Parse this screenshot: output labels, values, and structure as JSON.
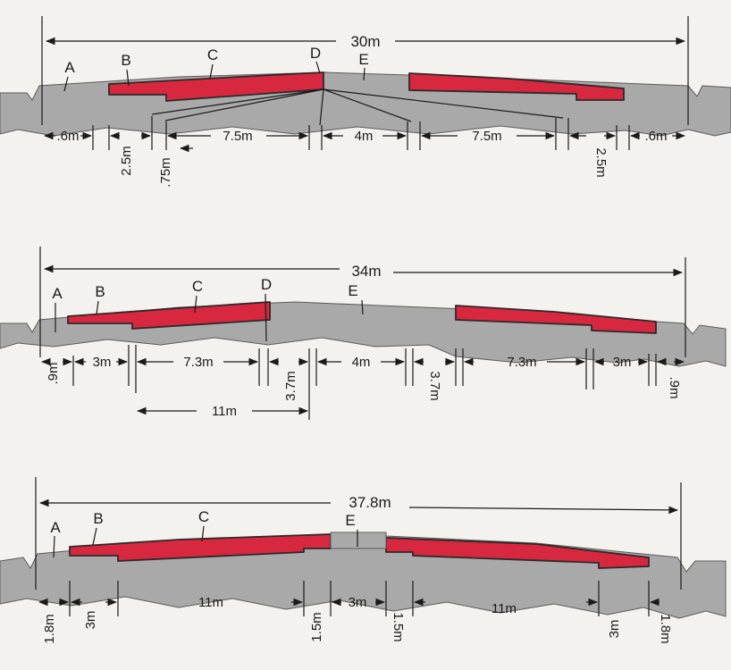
{
  "panels": [
    {
      "total": "30m",
      "letters": {
        "a": "A",
        "b": "B",
        "c": "C",
        "d": "D",
        "e": "E"
      },
      "dims": {
        "a_left": ".6m",
        "b_left": "2.5m",
        "c_left": "7.5m",
        "d_left": ".75m",
        "e": "4m",
        "c_right": "7.5m",
        "b_right": "2.5m",
        "a_right": ".6m"
      }
    },
    {
      "total": "34m",
      "letters": {
        "a": "A",
        "b": "B",
        "c": "C",
        "d": "D",
        "e": "E"
      },
      "dims": {
        "a_left": ".9m",
        "b_left": "3m",
        "c_left": "7.3m",
        "d_left": "3.7m",
        "e": "4m",
        "d_right": "3.7m",
        "c_right": "7.3m",
        "b_right": "3m",
        "a_right": ".9m",
        "span": "11m"
      }
    },
    {
      "total": "37.8m",
      "letters": {
        "a": "A",
        "b": "B",
        "c": "C",
        "e": "E"
      },
      "dims": {
        "a_left": "1.8m",
        "b_left": "3m",
        "c_left": "11m",
        "d_left": "1.5m",
        "e": "3m",
        "d_right": "1.5m",
        "c_right": "11m",
        "b_right": "3m",
        "a_right": "1.8m"
      }
    }
  ]
}
